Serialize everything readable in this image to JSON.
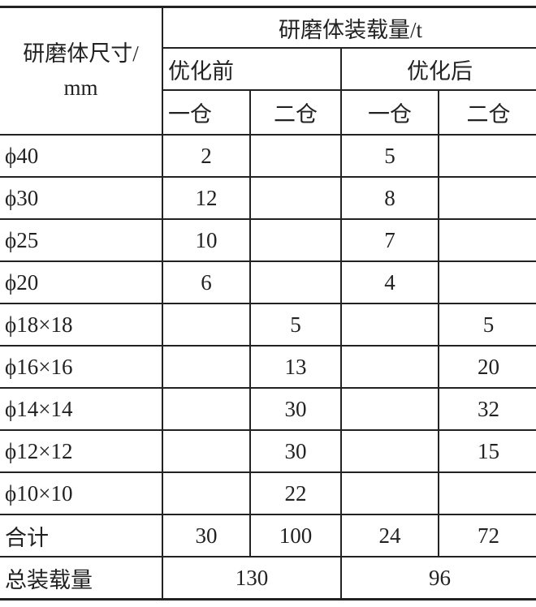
{
  "header": {
    "row_label": "研磨体尺寸/",
    "row_unit": "mm",
    "group_title": "研磨体装载量/t",
    "groups": [
      "优化前",
      "优化后"
    ],
    "subcols": [
      "一仓",
      "二仓",
      "一仓",
      "二仓"
    ]
  },
  "rows": [
    {
      "size": "ϕ40",
      "cells": [
        "2",
        "",
        "5",
        ""
      ]
    },
    {
      "size": "ϕ30",
      "cells": [
        "12",
        "",
        "8",
        ""
      ]
    },
    {
      "size": "ϕ25",
      "cells": [
        "10",
        "",
        "7",
        ""
      ]
    },
    {
      "size": "ϕ20",
      "cells": [
        "6",
        "",
        "4",
        ""
      ]
    },
    {
      "size": "ϕ18×18",
      "cells": [
        "",
        "5",
        "",
        "5"
      ]
    },
    {
      "size": "ϕ16×16",
      "cells": [
        "",
        "13",
        "",
        "20"
      ]
    },
    {
      "size": "ϕ14×14",
      "cells": [
        "",
        "30",
        "",
        "32"
      ]
    },
    {
      "size": "ϕ12×12",
      "cells": [
        "",
        "30",
        "",
        "15"
      ]
    },
    {
      "size": "ϕ10×10",
      "cells": [
        "",
        "22",
        "",
        ""
      ]
    }
  ],
  "subtotal": {
    "label": "合计",
    "cells": [
      "30",
      "100",
      "24",
      "72"
    ]
  },
  "total": {
    "label": "总装载量",
    "cells": [
      "130",
      "96"
    ]
  }
}
